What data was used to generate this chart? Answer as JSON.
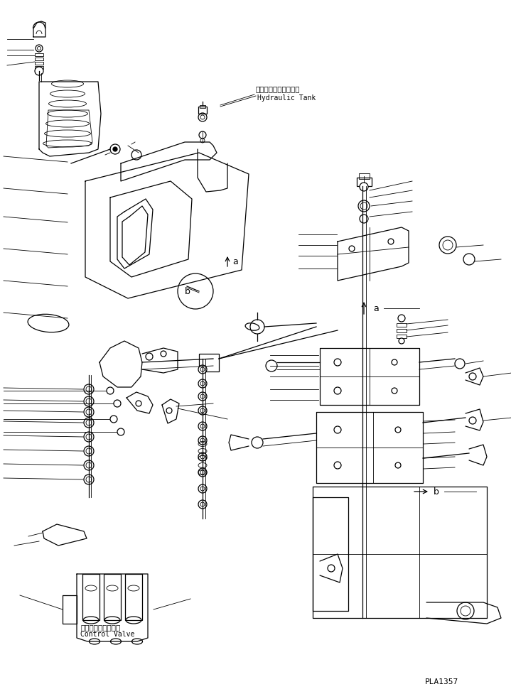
{
  "background_color": "#ffffff",
  "line_color": "#000000",
  "fig_width": 7.19,
  "fig_height": 9.77,
  "dpi": 100,
  "watermark": "PLA1357",
  "label_hydraulic_tank_ja": "ハイドロリックタンク",
  "label_hydraulic_tank_en": "Hydraulic Tank",
  "label_control_valve_ja": "コントロールバルブ",
  "label_control_valve_en": "Control Valve",
  "label_a": "a",
  "label_b": "b",
  "font_monospace": "monospace",
  "lw_main": 0.9,
  "lw_thin": 0.6
}
